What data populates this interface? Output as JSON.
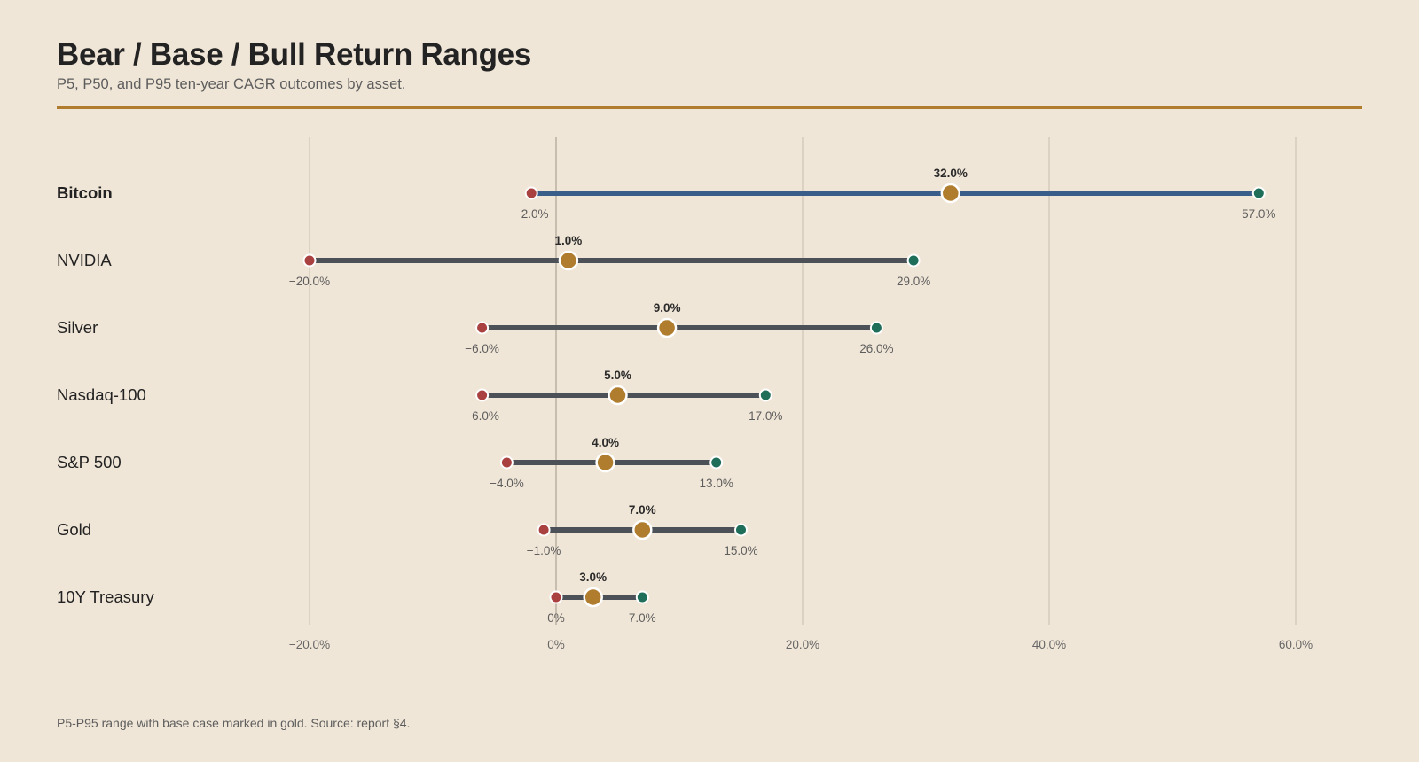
{
  "header": {
    "title": "Bear / Base / Bull Return Ranges",
    "subtitle": "P5, P50, and P95 ten-year CAGR outcomes by asset."
  },
  "footnote": "P5-P95 range with base case marked in gold. Source: report §4.",
  "colors": {
    "background": "#f0e6d7",
    "accent_rule": "#b07d2e",
    "range_line_default": "#4b5157",
    "range_line_highlight": "#3a5e8a",
    "bear_point": "#a8413f",
    "bull_point": "#1f6e5a",
    "base_point": "#b07d2e",
    "gridline": "#c9bfb1"
  },
  "chart_data": {
    "type": "dumbbell",
    "title": "Bear / Base / Bull Return Ranges",
    "subtitle": "P5, P50, and P95 ten-year CAGR outcomes by asset.",
    "xlabel": "",
    "ylabel": "",
    "unit": "%",
    "xlim": [
      -20,
      60
    ],
    "x_ticks": [
      -20,
      0,
      20,
      40,
      60
    ],
    "x_tick_labels": [
      "−20.0%",
      "0%",
      "20.0%",
      "40.0%",
      "60.0%"
    ],
    "grid": "vertical",
    "highlight": "Bitcoin",
    "rows": [
      {
        "asset": "Bitcoin",
        "p5": -2,
        "p50": 32,
        "p95": 57,
        "p5_label": "−2.0%",
        "p50_label": "32.0%",
        "p95_label": "57.0%"
      },
      {
        "asset": "NVIDIA",
        "p5": -20,
        "p50": 1,
        "p95": 29,
        "p5_label": "−20.0%",
        "p50_label": "1.0%",
        "p95_label": "29.0%"
      },
      {
        "asset": "Silver",
        "p5": -6,
        "p50": 9,
        "p95": 26,
        "p5_label": "−6.0%",
        "p50_label": "9.0%",
        "p95_label": "26.0%"
      },
      {
        "asset": "Nasdaq-100",
        "p5": -6,
        "p50": 5,
        "p95": 17,
        "p5_label": "−6.0%",
        "p50_label": "5.0%",
        "p95_label": "17.0%"
      },
      {
        "asset": "S&P 500",
        "p5": -4,
        "p50": 4,
        "p95": 13,
        "p5_label": "−4.0%",
        "p50_label": "4.0%",
        "p95_label": "13.0%"
      },
      {
        "asset": "Gold",
        "p5": -1,
        "p50": 7,
        "p95": 15,
        "p5_label": "−1.0%",
        "p50_label": "7.0%",
        "p95_label": "15.0%"
      },
      {
        "asset": "10Y Treasury",
        "p5": 0,
        "p50": 3,
        "p95": 7,
        "p5_label": "0%",
        "p50_label": "3.0%",
        "p95_label": "7.0%"
      }
    ]
  }
}
